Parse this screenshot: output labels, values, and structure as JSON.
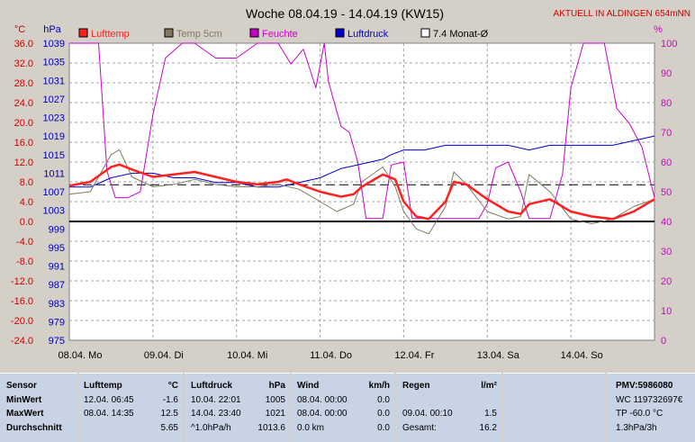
{
  "chart_data": {
    "type": "line",
    "title": "Woche 08.04.19 - 14.04.19 (KW15)",
    "status": "AKTUELL IN ALDINGEN 654mNN",
    "units": {
      "left_outer": "°C",
      "left_inner": "hPa",
      "right": "%"
    },
    "legend": [
      {
        "name": "Lufttemp",
        "color": "#ff2020"
      },
      {
        "name": "Temp 5cm",
        "color": "#807860"
      },
      {
        "name": "Feuchte",
        "color": "#cc00cc"
      },
      {
        "name": "Luftdruck",
        "color": "#0000cc"
      },
      {
        "name": "7.4 Monat-Ø",
        "color": "#000000"
      }
    ],
    "temp_ticks": [
      "36.0",
      "32.0",
      "28.0",
      "24.0",
      "20.0",
      "16.0",
      "12.0",
      "8.0",
      "4.0",
      "0.0",
      "-4.0",
      "-8.0",
      "-12.0",
      "-16.0",
      "-20.0",
      "-24.0"
    ],
    "pressure_ticks": [
      "1039",
      "1035",
      "1031",
      "1027",
      "1023",
      "1019",
      "1015",
      "1011",
      "1007",
      "1003",
      "999",
      "995",
      "991",
      "987",
      "983",
      "979",
      "975"
    ],
    "humidity_ticks": [
      "100",
      "90",
      "80",
      "70",
      "60",
      "50",
      "40",
      "30",
      "20",
      "10",
      "0"
    ],
    "x_labels": [
      "08.04. Mo",
      "09.04. Di",
      "10.04. Mi",
      "11.04. Do",
      "12.04. Fr",
      "13.04. Sa",
      "14.04. So"
    ],
    "ylim_temp": [
      -24,
      36
    ],
    "ylim_pressure": [
      975,
      1039
    ],
    "ylim_humidity": [
      0,
      100
    ],
    "monthly_avg_temp": 7.4,
    "series": [
      {
        "name": "Lufttemp",
        "color": "#ff2020",
        "x": [
          0,
          0.25,
          0.5,
          0.6,
          0.75,
          1,
          1.25,
          1.5,
          1.75,
          2,
          2.25,
          2.5,
          2.6,
          2.75,
          3,
          3.25,
          3.4,
          3.5,
          3.75,
          3.9,
          4,
          4.15,
          4.3,
          4.5,
          4.6,
          4.75,
          5,
          5.25,
          5.4,
          5.5,
          5.75,
          6,
          6.25,
          6.5,
          6.75,
          7
        ],
        "y": [
          7.2,
          8.0,
          11.0,
          11.5,
          10.5,
          9.0,
          9.5,
          10.0,
          9.0,
          8.0,
          7.5,
          8.0,
          8.5,
          7.5,
          6.0,
          5.0,
          5.5,
          7.0,
          9.5,
          8.5,
          4.0,
          1.0,
          0.5,
          4.0,
          8.0,
          7.5,
          4.5,
          2.0,
          1.5,
          3.5,
          4.5,
          2.0,
          1.0,
          0.5,
          2.0,
          4.5
        ]
      },
      {
        "name": "Temp 5cm",
        "color": "#807860",
        "x": [
          0,
          0.25,
          0.5,
          0.6,
          0.75,
          1,
          1.25,
          1.5,
          1.75,
          2,
          2.25,
          2.5,
          2.75,
          3,
          3.2,
          3.4,
          3.5,
          3.75,
          3.9,
          4,
          4.15,
          4.3,
          4.5,
          4.6,
          4.75,
          5,
          5.25,
          5.4,
          5.5,
          5.75,
          6,
          6.25,
          6.5,
          6.75,
          7
        ],
        "y": [
          5.5,
          6.0,
          13.5,
          14.5,
          9.0,
          7.0,
          7.5,
          8.5,
          7.5,
          7.0,
          7.0,
          7.5,
          6.5,
          4.0,
          2.0,
          3.5,
          8.0,
          11.0,
          7.0,
          2.0,
          -1.5,
          -2.5,
          3.0,
          10.0,
          7.5,
          2.0,
          0.5,
          1.0,
          9.5,
          6.0,
          0.5,
          -0.5,
          0.5,
          3.0,
          4.5
        ]
      },
      {
        "name": "Feuchte",
        "color": "#cc00cc",
        "x": [
          0,
          0.35,
          0.45,
          0.55,
          0.7,
          0.85,
          1,
          1.15,
          1.35,
          1.5,
          1.75,
          2,
          2.25,
          2.5,
          2.65,
          2.8,
          2.95,
          3.05,
          3.1,
          3.25,
          3.35,
          3.45,
          3.55,
          3.75,
          3.85,
          4.0,
          4.1,
          4.3,
          4.5,
          4.75,
          4.9,
          5.0,
          5.1,
          5.25,
          5.4,
          5.5,
          5.75,
          5.9,
          6.0,
          6.15,
          6.25,
          6.4,
          6.55,
          6.7,
          6.85,
          7
        ],
        "y": [
          100,
          100,
          57,
          48,
          48,
          50,
          76,
          95,
          100,
          100,
          95,
          95,
          100,
          100,
          93,
          98,
          85,
          100,
          87,
          72,
          70,
          60,
          41,
          41,
          59,
          60,
          41,
          41,
          41,
          41,
          41,
          46,
          58,
          60,
          50,
          41,
          41,
          56,
          85,
          100,
          100,
          100,
          78,
          73,
          65,
          48
        ]
      },
      {
        "name": "Luftdruck",
        "color": "#0000cc",
        "x": [
          0,
          0.25,
          0.5,
          0.75,
          1,
          1.25,
          1.5,
          1.75,
          2,
          2.25,
          2.5,
          2.75,
          3,
          3.25,
          3.5,
          3.75,
          3.85,
          4,
          4.25,
          4.5,
          4.75,
          5,
          5.25,
          5.5,
          5.75,
          6,
          6.25,
          6.5,
          6.75,
          7
        ],
        "y": [
          1008,
          1008,
          1010,
          1011,
          1011,
          1010,
          1010,
          1009,
          1009,
          1008,
          1008,
          1009,
          1010,
          1012,
          1013,
          1014,
          1015,
          1016,
          1016,
          1017,
          1017,
          1017,
          1017,
          1016,
          1017,
          1017,
          1017,
          1017,
          1018,
          1019
        ]
      }
    ]
  },
  "table": {
    "sensor": {
      "title": "Sensor",
      "rows": [
        "MinWert",
        "MaxWert",
        "Durchschnitt"
      ]
    },
    "lufttemp": {
      "title": "Lufttemp",
      "unit": "°C",
      "rows": [
        [
          "12.04.  06:45",
          "-1.6"
        ],
        [
          "08.04.  14:35",
          "12.5"
        ],
        [
          "",
          "5.65"
        ]
      ]
    },
    "luftdruck": {
      "title": "Luftdruck",
      "unit": "hPa",
      "rows": [
        [
          "10.04.  22:01",
          "1005"
        ],
        [
          "14.04.  23:40",
          "1021"
        ],
        [
          "^1.0hPa/h",
          "1013.6"
        ]
      ]
    },
    "wind": {
      "title": "Wind",
      "unit": "km/h",
      "rows": [
        [
          "08.04.  00:00",
          "0.0"
        ],
        [
          "08.04.  00:00",
          "0.0"
        ],
        [
          "0.0 km",
          "0.0"
        ]
      ]
    },
    "regen": {
      "title": "Regen",
      "unit": "l/m²",
      "rows": [
        [
          "",
          ""
        ],
        [
          "09.04.  00:10",
          "1.5"
        ],
        [
          "Gesamt:",
          "16.2"
        ]
      ]
    },
    "pmv": {
      "title": "PMV:5986080",
      "rows": [
        "WC 119732697€",
        "TP -60.0 °C",
        "1.3hPa/3h"
      ]
    }
  }
}
